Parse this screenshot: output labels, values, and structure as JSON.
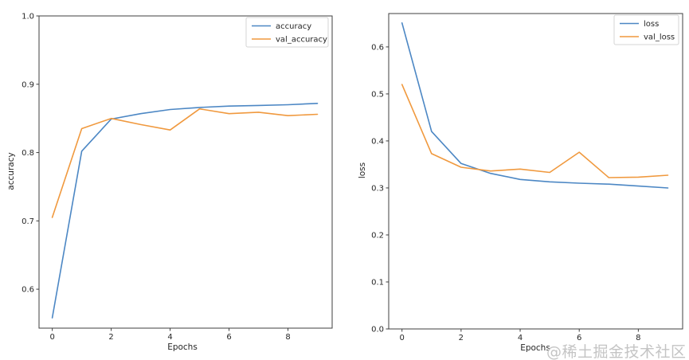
{
  "figure": {
    "background": "#ffffff"
  },
  "watermark": {
    "text": "@稀土掘金技术社区",
    "color": "#c4c4c4"
  },
  "style_colors": {
    "line_blue": "#4c87c4",
    "line_orange": "#f0993e",
    "spine": "#3f3f3f",
    "tick_text": "#262626",
    "legend_border": "#d4d4d4",
    "legend_background": "#ffffff"
  },
  "chart_data": [
    {
      "type": "line",
      "title": "",
      "xlabel": "Epochs",
      "ylabel": "accuracy",
      "grid": false,
      "legend_position": "upper right",
      "x": [
        0,
        1,
        2,
        3,
        4,
        5,
        6,
        7,
        8,
        9
      ],
      "xlim": [
        -0.45,
        9.5
      ],
      "ylim": [
        0.543,
        1.0
      ],
      "xticks": [
        0,
        2,
        4,
        6,
        8
      ],
      "xtick_labels": [
        "0",
        "2",
        "4",
        "6",
        "8"
      ],
      "yticks": [
        0.6,
        0.7,
        0.8,
        0.9,
        1.0
      ],
      "ytick_labels": [
        "0.6",
        "0.7",
        "0.8",
        "0.9",
        "1.0"
      ],
      "series": [
        {
          "name": "accuracy",
          "color": "#4c87c4",
          "values": [
            0.558,
            0.802,
            0.849,
            0.857,
            0.863,
            0.866,
            0.868,
            0.869,
            0.87,
            0.872
          ]
        },
        {
          "name": "val_accuracy",
          "color": "#f0993e",
          "values": [
            0.705,
            0.835,
            0.85,
            0.841,
            0.833,
            0.864,
            0.857,
            0.859,
            0.854,
            0.856
          ]
        }
      ]
    },
    {
      "type": "line",
      "title": "",
      "xlabel": "Epochs",
      "ylabel": "loss",
      "grid": false,
      "legend_position": "upper right",
      "x": [
        0,
        1,
        2,
        3,
        4,
        5,
        6,
        7,
        8,
        9
      ],
      "xlim": [
        -0.45,
        9.5
      ],
      "ylim": [
        0.0,
        0.671
      ],
      "xticks": [
        0,
        2,
        4,
        6,
        8
      ],
      "xtick_labels": [
        "0",
        "2",
        "4",
        "6",
        "8"
      ],
      "yticks": [
        0.0,
        0.1,
        0.2,
        0.3,
        0.4,
        0.5,
        0.6
      ],
      "ytick_labels": [
        "0.0",
        "0.1",
        "0.2",
        "0.3",
        "0.4",
        "0.5",
        "0.6"
      ],
      "series": [
        {
          "name": "loss",
          "color": "#4c87c4",
          "values": [
            0.651,
            0.42,
            0.352,
            0.331,
            0.318,
            0.313,
            0.31,
            0.308,
            0.304,
            0.3
          ]
        },
        {
          "name": "val_loss",
          "color": "#f0993e",
          "values": [
            0.52,
            0.373,
            0.344,
            0.336,
            0.34,
            0.333,
            0.376,
            0.322,
            0.323,
            0.327
          ]
        }
      ]
    }
  ]
}
